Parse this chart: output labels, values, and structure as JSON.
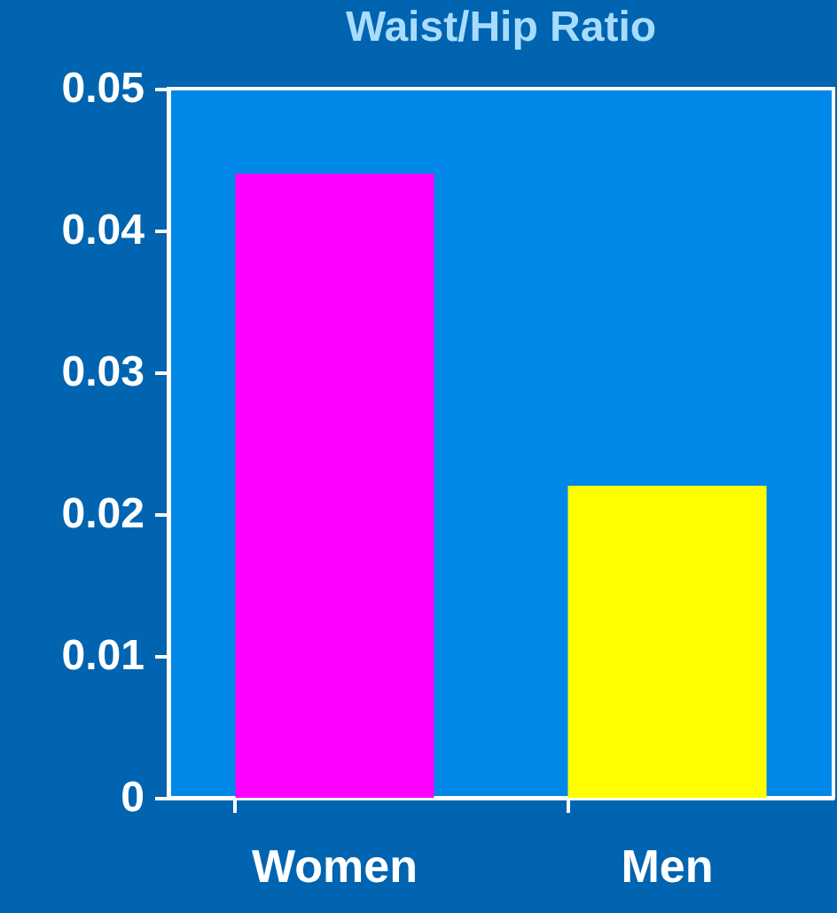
{
  "chart_data": {
    "type": "bar",
    "title": "Waist/Hip Ratio",
    "categories": [
      "Women",
      "Men"
    ],
    "colors": [
      "#ff00ff",
      "#ffff00"
    ],
    "ylim": [
      0,
      0.05
    ],
    "yticks": [
      {
        "value": 0,
        "label": "0"
      },
      0.01,
      0.02,
      0.03,
      0.04,
      0.05
    ],
    "values": [
      0.044,
      0.022
    ],
    "grid": false,
    "legend": false
  }
}
